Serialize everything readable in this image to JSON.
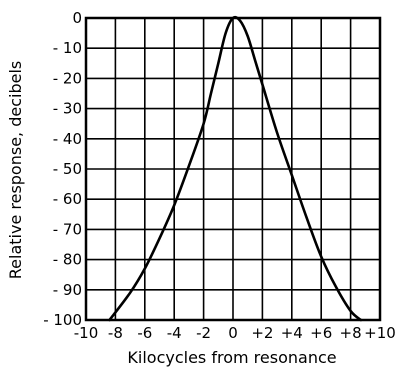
{
  "chart_data": {
    "type": "line",
    "title": "",
    "xlabel": "Kilocycles from resonance",
    "ylabel": "Relative response, decibels",
    "xlim": [
      -10,
      10
    ],
    "ylim": [
      0,
      100
    ],
    "y_inverted": true,
    "grid": true,
    "x_ticks": [
      -10,
      -8,
      -6,
      -4,
      -2,
      0,
      2,
      4,
      6,
      8,
      10
    ],
    "x_tick_labels": [
      "-10",
      "-8",
      "-6",
      "-4",
      "-2",
      "0",
      "+2",
      "+4",
      "+6",
      "+8",
      "+10"
    ],
    "y_ticks": [
      0,
      10,
      20,
      30,
      40,
      50,
      60,
      70,
      80,
      90,
      100
    ],
    "y_tick_labels": [
      "0",
      "- 10",
      "- 20",
      "- 30",
      "- 40",
      "- 50",
      "- 60",
      "- 70",
      "- 80",
      "- 90",
      "- 100"
    ],
    "series": [
      {
        "x": [
          -8.4,
          -7.0,
          -6.0,
          -5.0,
          -4.0,
          -3.0,
          -2.0,
          -1.5,
          -1.0,
          -0.5,
          0.0,
          0.5,
          1.0,
          1.5,
          2.0,
          3.0,
          4.0,
          5.0,
          6.0,
          7.0,
          8.0,
          8.7
        ],
        "y": [
          100,
          91,
          83,
          73,
          62,
          49,
          35,
          25,
          15,
          5,
          0,
          1,
          6,
          14,
          22,
          38,
          52,
          66,
          79,
          89,
          97,
          100
        ],
        "color": "#000000"
      }
    ]
  }
}
